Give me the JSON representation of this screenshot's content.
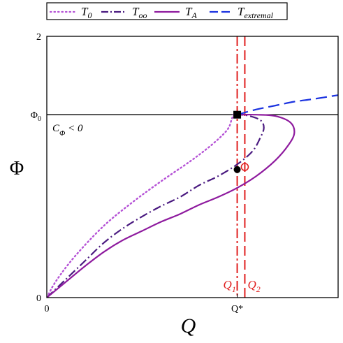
{
  "chart_data": {
    "type": "line",
    "title": "",
    "xlabel": "Q",
    "ylabel": "Φ",
    "xlim": [
      0,
      1.53
    ],
    "ylim": [
      0,
      2
    ],
    "x_ticks": [
      {
        "value": 0,
        "label": "0"
      },
      {
        "value": 1,
        "label": "Q*"
      }
    ],
    "y_ticks": [
      {
        "value": 0,
        "label": "0"
      },
      {
        "value": 1.4,
        "label": "Φ",
        "sub": "0"
      },
      {
        "value": 2,
        "label": "2"
      }
    ],
    "grid": false,
    "legend_position": "top",
    "colors": {
      "T0": "#b552d6",
      "Too": "#4a1a80",
      "TA": "#8e1a9e",
      "Textremal": "#1a32e0",
      "guide": "#e02020",
      "axis": "#000000"
    },
    "series": [
      {
        "id": "T0",
        "name": "T",
        "sub": "0",
        "style": "dotted",
        "color": "#b552d6",
        "points": [
          [
            0,
            0
          ],
          [
            0.05,
            0.13
          ],
          [
            0.15,
            0.32
          ],
          [
            0.3,
            0.55
          ],
          [
            0.45,
            0.73
          ],
          [
            0.6,
            0.89
          ],
          [
            0.75,
            1.04
          ],
          [
            0.85,
            1.15
          ],
          [
            0.92,
            1.24
          ],
          [
            0.955,
            1.3
          ],
          [
            0.97,
            1.36
          ],
          [
            0.98,
            1.4
          ]
        ]
      },
      {
        "id": "Too",
        "name": "T",
        "sub": "oo",
        "style": "dashdot",
        "color": "#4a1a80",
        "points": [
          [
            0,
            0
          ],
          [
            0.1,
            0.14
          ],
          [
            0.2,
            0.28
          ],
          [
            0.3,
            0.42
          ],
          [
            0.4,
            0.53
          ],
          [
            0.5,
            0.62
          ],
          [
            0.6,
            0.7
          ],
          [
            0.7,
            0.77
          ],
          [
            0.8,
            0.86
          ],
          [
            0.9,
            0.93
          ],
          [
            1,
            1.02
          ],
          [
            1.08,
            1.12
          ],
          [
            1.12,
            1.22
          ],
          [
            1.14,
            1.3
          ],
          [
            1.12,
            1.36
          ],
          [
            1.05,
            1.395
          ],
          [
            1,
            1.4
          ]
        ]
      },
      {
        "id": "TA",
        "name": "T",
        "sub": "A",
        "style": "solid",
        "color": "#8e1a9e",
        "points": [
          [
            0,
            0
          ],
          [
            0.1,
            0.12
          ],
          [
            0.2,
            0.24
          ],
          [
            0.3,
            0.35
          ],
          [
            0.4,
            0.44
          ],
          [
            0.5,
            0.51
          ],
          [
            0.6,
            0.58
          ],
          [
            0.7,
            0.64
          ],
          [
            0.8,
            0.71
          ],
          [
            0.9,
            0.77
          ],
          [
            1,
            0.84
          ],
          [
            1.1,
            0.93
          ],
          [
            1.2,
            1.05
          ],
          [
            1.27,
            1.17
          ],
          [
            1.3,
            1.26
          ],
          [
            1.28,
            1.34
          ],
          [
            1.2,
            1.39
          ],
          [
            1.1,
            1.4
          ],
          [
            1,
            1.4
          ]
        ]
      },
      {
        "id": "Textremal",
        "name": "T",
        "sub": "extremal",
        "style": "dashed",
        "color": "#1a32e0",
        "points": [
          [
            1,
            1.4
          ],
          [
            1.1,
            1.44
          ],
          [
            1.2,
            1.47
          ],
          [
            1.3,
            1.5
          ],
          [
            1.4,
            1.52
          ],
          [
            1.53,
            1.55
          ]
        ]
      }
    ],
    "vertical_lines": [
      {
        "x": 1.0,
        "style": "dashdot",
        "label": "Q",
        "sub": "1",
        "color": "#e02020"
      },
      {
        "x": 1.04,
        "style": "dashed",
        "label": "Q",
        "sub": "2",
        "color": "#e02020"
      }
    ],
    "horizontal_lines": [
      {
        "y": 1.4,
        "style": "solid",
        "color": "#000000"
      }
    ],
    "markers": [
      {
        "x": 1.0,
        "y": 1.4,
        "shape": "square-filled"
      },
      {
        "x": 1.0,
        "y": 0.98,
        "shape": "circle-filled"
      },
      {
        "x": 1.04,
        "y": 1.0,
        "shape": "circle-open"
      }
    ],
    "annotations": [
      {
        "text": "C",
        "sub": "Φ",
        "suffix": " < 0"
      }
    ]
  }
}
